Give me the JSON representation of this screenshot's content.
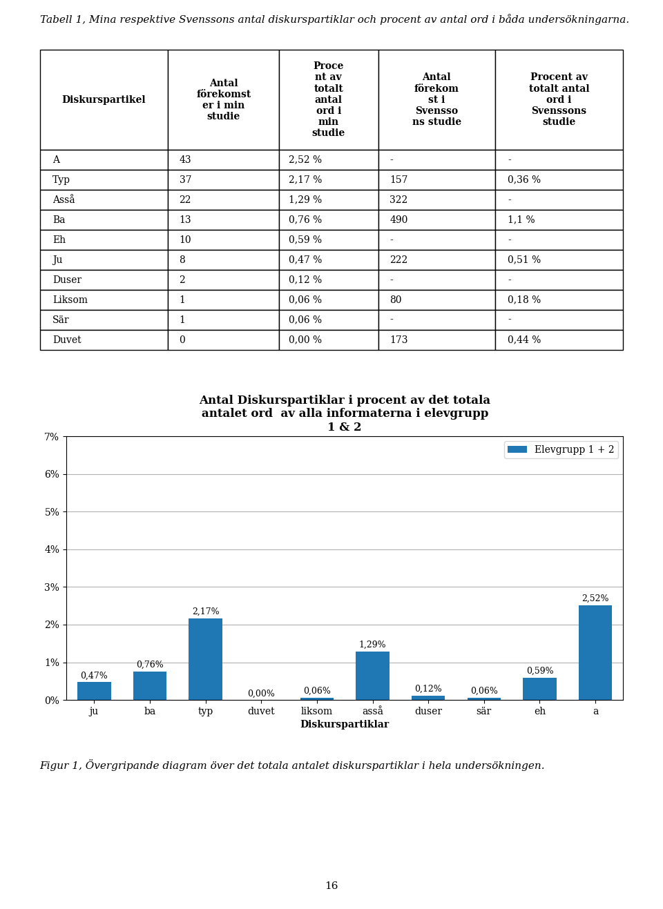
{
  "table": {
    "title": "Tabell 1, Mina respektive Svenssons antal diskurspartiklar och procent av antal ord i båda undersökningarna.",
    "columns": [
      "Diskurspartikel",
      "Antal\nförekomst\ner i min\nstudie",
      "Proce\nnt av\ntotalt\nantal\nord i\nmin\nstudie",
      "Antal\nförekom\nst i\nSvensso\nns studie",
      "Procent av\ntotalt antal\nord i\nSvenssons\nstudie"
    ],
    "rows": [
      [
        "A",
        "43",
        "2,52 %",
        "-",
        "-"
      ],
      [
        "Typ",
        "37",
        "2,17 %",
        "157",
        "0,36 %"
      ],
      [
        "Asså",
        "22",
        "1,29 %",
        "322",
        "-"
      ],
      [
        "Ba",
        "13",
        "0,76 %",
        "490",
        "1,1 %"
      ],
      [
        "Eh",
        "10",
        "0,59 %",
        "-",
        "-"
      ],
      [
        "Ju",
        "8",
        "0,47 %",
        "222",
        "0,51 %"
      ],
      [
        "Duser",
        "2",
        "0,12 %",
        "-",
        "-"
      ],
      [
        "Liksom",
        "1",
        "0,06 %",
        "80",
        "0,18 %"
      ],
      [
        "Sär",
        "1",
        "0,06 %",
        "-",
        "-"
      ],
      [
        "Duvet",
        "0",
        "0,00 %",
        "173",
        "0,44 %"
      ]
    ]
  },
  "chart_data": {
    "type": "bar",
    "title": "Antal Diskurspartiklar i procent av det totala\nantalet ord  av alla informaterna i elevgrupp\n1 & 2",
    "categories": [
      "ju",
      "ba",
      "typ",
      "duvet",
      "liksom",
      "asså",
      "duser",
      "sär",
      "eh",
      "a"
    ],
    "series": [
      {
        "name": "Elevgrupp 1 + 2",
        "values": [
          0.47,
          0.76,
          2.17,
          0.0,
          0.06,
          1.29,
          0.12,
          0.06,
          0.59,
          2.52
        ],
        "value_labels": [
          "0,47%",
          "0,76%",
          "2,17%",
          "0,00%",
          "0,06%",
          "1,29%",
          "0,12%",
          "0,06%",
          "0,59%",
          "2,52%"
        ]
      }
    ],
    "xlabel": "Diskurspartiklar",
    "ylim": [
      0,
      7
    ],
    "yticks": [
      {
        "value": 0,
        "label": "0%"
      },
      {
        "value": 1,
        "label": "1%"
      },
      {
        "value": 2,
        "label": "2%"
      },
      {
        "value": 3,
        "label": "3%"
      },
      {
        "value": 4,
        "label": "4%"
      },
      {
        "value": 5,
        "label": "5%"
      },
      {
        "value": 6,
        "label": "6%"
      },
      {
        "value": 7,
        "label": "7%"
      }
    ],
    "grid": true,
    "legend": "upper right",
    "data_labels": true
  },
  "caption": "Figur 1, Övergripande diagram över det totala antalet diskurspartiklar i hela undersökningen.",
  "page_number": "16"
}
